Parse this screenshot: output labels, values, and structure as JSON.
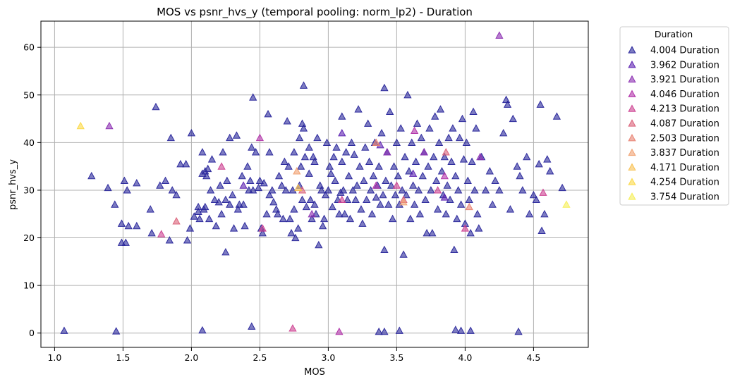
{
  "chart_data": {
    "type": "scatter",
    "title": "MOS vs psnr_hvs_y (temporal pooling: norm_lp2) - Duration",
    "xlabel": "MOS",
    "ylabel": "psnr_hvs_y",
    "xlim": [
      0.9,
      4.9
    ],
    "ylim": [
      -3,
      65.5
    ],
    "xticks": [
      1.0,
      1.5,
      2.0,
      2.5,
      3.0,
      3.5,
      4.0,
      4.5
    ],
    "xtick_labels": [
      "1.0",
      "1.5",
      "2.0",
      "2.5",
      "3.0",
      "3.5",
      "4.0",
      "4.5"
    ],
    "yticks": [
      0,
      10,
      20,
      30,
      40,
      50,
      60
    ],
    "ytick_labels": [
      "0",
      "10",
      "20",
      "30",
      "40",
      "50",
      "60"
    ],
    "grid": true,
    "marker": "triangle",
    "legend": {
      "title": "Duration",
      "placement": "outside-upper-right"
    },
    "series": [
      {
        "name": "4.004 Duration",
        "color": "#27249a",
        "points": [
          [
            1.07,
            0.5
          ],
          [
            1.45,
            0.4
          ],
          [
            2.08,
            0.6
          ],
          [
            2.44,
            1.4
          ],
          [
            3.37,
            0.3
          ],
          [
            3.41,
            0.3
          ],
          [
            3.52,
            0.5
          ],
          [
            3.93,
            0.7
          ],
          [
            3.97,
            0.5
          ],
          [
            4.04,
            0.5
          ],
          [
            4.39,
            0.3
          ],
          [
            1.27,
            33
          ],
          [
            1.39,
            30.5
          ],
          [
            1.44,
            27
          ],
          [
            1.49,
            23
          ],
          [
            1.49,
            19
          ],
          [
            1.51,
            32
          ],
          [
            1.52,
            19
          ],
          [
            1.53,
            30
          ],
          [
            1.54,
            22.5
          ],
          [
            1.6,
            31.5
          ],
          [
            1.6,
            22.5
          ],
          [
            1.7,
            26
          ],
          [
            1.71,
            21
          ],
          [
            1.74,
            47.5
          ],
          [
            1.77,
            31
          ],
          [
            1.81,
            32
          ],
          [
            1.84,
            19.5
          ],
          [
            1.85,
            41
          ],
          [
            1.86,
            30
          ],
          [
            1.89,
            29
          ],
          [
            1.92,
            35.5
          ],
          [
            1.96,
            35.5
          ],
          [
            1.97,
            19.5
          ],
          [
            1.99,
            22
          ],
          [
            2.0,
            42
          ],
          [
            2.02,
            24.5
          ],
          [
            2.05,
            26.5
          ],
          [
            2.05,
            25.5
          ],
          [
            2.06,
            24
          ],
          [
            2.08,
            33.5
          ],
          [
            2.08,
            38
          ],
          [
            2.09,
            26
          ],
          [
            2.1,
            26.5
          ],
          [
            2.1,
            34
          ],
          [
            2.11,
            33
          ],
          [
            2.12,
            34.5
          ],
          [
            2.13,
            24
          ],
          [
            2.14,
            30
          ],
          [
            2.15,
            36.5
          ],
          [
            2.17,
            28
          ],
          [
            2.18,
            22.5
          ],
          [
            2.2,
            27.5
          ],
          [
            2.21,
            31
          ],
          [
            2.22,
            25
          ],
          [
            2.23,
            38
          ],
          [
            2.25,
            28
          ],
          [
            2.25,
            17
          ],
          [
            2.26,
            32
          ],
          [
            2.28,
            27
          ],
          [
            2.28,
            41
          ],
          [
            2.3,
            29
          ],
          [
            2.31,
            22
          ],
          [
            2.33,
            41.5
          ],
          [
            2.34,
            26
          ],
          [
            2.35,
            27
          ],
          [
            2.37,
            33
          ],
          [
            2.38,
            27
          ],
          [
            2.39,
            22.5
          ],
          [
            2.41,
            35
          ],
          [
            2.42,
            30
          ],
          [
            2.43,
            32
          ],
          [
            2.44,
            39
          ],
          [
            2.45,
            49.5
          ],
          [
            2.45,
            30
          ],
          [
            2.47,
            38
          ],
          [
            2.49,
            30.5
          ],
          [
            2.5,
            32
          ],
          [
            2.51,
            22
          ],
          [
            2.52,
            21
          ],
          [
            2.53,
            31.5
          ],
          [
            2.55,
            25
          ],
          [
            2.56,
            46
          ],
          [
            2.57,
            29
          ],
          [
            2.57,
            38
          ],
          [
            2.59,
            30
          ],
          [
            2.6,
            27.5
          ],
          [
            2.62,
            26
          ],
          [
            2.63,
            25
          ],
          [
            2.64,
            33
          ],
          [
            2.66,
            31
          ],
          [
            2.67,
            24
          ],
          [
            2.68,
            36
          ],
          [
            2.69,
            30
          ],
          [
            2.7,
            44.5
          ],
          [
            2.71,
            35
          ],
          [
            2.72,
            24
          ],
          [
            2.73,
            21
          ],
          [
            2.74,
            30
          ],
          [
            2.75,
            26
          ],
          [
            2.75,
            38
          ],
          [
            2.76,
            20
          ],
          [
            2.78,
            22
          ],
          [
            2.79,
            31
          ],
          [
            2.79,
            41
          ],
          [
            2.8,
            35
          ],
          [
            2.81,
            44
          ],
          [
            2.81,
            28
          ],
          [
            2.82,
            43
          ],
          [
            2.82,
            52
          ],
          [
            2.83,
            37
          ],
          [
            2.84,
            26.5
          ],
          [
            2.86,
            33.5
          ],
          [
            2.86,
            39
          ],
          [
            2.87,
            28
          ],
          [
            2.88,
            24
          ],
          [
            2.89,
            37
          ],
          [
            2.9,
            36
          ],
          [
            2.9,
            27
          ],
          [
            2.91,
            25
          ],
          [
            2.92,
            41
          ],
          [
            2.93,
            18.5
          ],
          [
            2.94,
            31
          ],
          [
            2.95,
            30
          ],
          [
            2.96,
            22.5
          ],
          [
            2.97,
            24
          ],
          [
            2.98,
            29
          ],
          [
            2.99,
            40
          ],
          [
            3.0,
            30
          ],
          [
            3.01,
            35
          ],
          [
            3.02,
            33.5
          ],
          [
            3.03,
            26.5
          ],
          [
            3.04,
            37
          ],
          [
            3.05,
            32
          ],
          [
            3.06,
            39
          ],
          [
            3.07,
            28
          ],
          [
            3.08,
            25
          ],
          [
            3.09,
            29.5
          ],
          [
            3.1,
            45.5
          ],
          [
            3.1,
            36
          ],
          [
            3.11,
            30
          ],
          [
            3.12,
            25
          ],
          [
            3.13,
            38
          ],
          [
            3.14,
            28
          ],
          [
            3.15,
            33
          ],
          [
            3.16,
            24
          ],
          [
            3.17,
            40
          ],
          [
            3.18,
            30
          ],
          [
            3.19,
            37.5
          ],
          [
            3.2,
            28
          ],
          [
            3.21,
            31
          ],
          [
            3.22,
            47
          ],
          [
            3.23,
            35
          ],
          [
            3.24,
            26
          ],
          [
            3.25,
            23
          ],
          [
            3.26,
            32
          ],
          [
            3.27,
            39
          ],
          [
            3.28,
            28
          ],
          [
            3.29,
            44
          ],
          [
            3.3,
            36
          ],
          [
            3.31,
            30
          ],
          [
            3.32,
            25
          ],
          [
            3.33,
            33
          ],
          [
            3.34,
            40
          ],
          [
            3.35,
            28.5
          ],
          [
            3.36,
            31
          ],
          [
            3.37,
            35
          ],
          [
            3.38,
            27
          ],
          [
            3.39,
            42
          ],
          [
            3.4,
            29
          ],
          [
            3.41,
            51.5
          ],
          [
            3.41,
            17.5
          ],
          [
            3.42,
            32
          ],
          [
            3.43,
            38
          ],
          [
            3.44,
            27
          ],
          [
            3.45,
            46.5
          ],
          [
            3.46,
            31
          ],
          [
            3.47,
            24
          ],
          [
            3.48,
            35
          ],
          [
            3.49,
            29
          ],
          [
            3.5,
            40
          ],
          [
            3.51,
            33
          ],
          [
            3.52,
            27
          ],
          [
            3.53,
            43
          ],
          [
            3.54,
            30
          ],
          [
            3.55,
            16.5
          ],
          [
            3.56,
            37
          ],
          [
            3.57,
            29
          ],
          [
            3.58,
            50
          ],
          [
            3.59,
            34
          ],
          [
            3.6,
            24
          ],
          [
            3.61,
            40
          ],
          [
            3.62,
            31
          ],
          [
            3.63,
            27
          ],
          [
            3.64,
            36
          ],
          [
            3.65,
            44
          ],
          [
            3.66,
            30
          ],
          [
            3.67,
            25
          ],
          [
            3.68,
            41
          ],
          [
            3.69,
            33
          ],
          [
            3.7,
            38
          ],
          [
            3.71,
            28
          ],
          [
            3.72,
            21
          ],
          [
            3.73,
            35
          ],
          [
            3.74,
            43
          ],
          [
            3.75,
            30
          ],
          [
            3.76,
            21
          ],
          [
            3.77,
            37
          ],
          [
            3.78,
            45.5
          ],
          [
            3.79,
            32
          ],
          [
            3.8,
            26
          ],
          [
            3.81,
            40
          ],
          [
            3.82,
            47
          ],
          [
            3.83,
            34
          ],
          [
            3.84,
            29
          ],
          [
            3.85,
            37
          ],
          [
            3.86,
            25
          ],
          [
            3.87,
            31
          ],
          [
            3.88,
            41
          ],
          [
            3.89,
            28
          ],
          [
            3.9,
            36
          ],
          [
            3.91,
            43
          ],
          [
            3.92,
            17.5
          ],
          [
            3.93,
            33
          ],
          [
            3.94,
            24
          ],
          [
            3.95,
            30
          ],
          [
            3.96,
            41
          ],
          [
            3.97,
            27
          ],
          [
            3.98,
            45
          ],
          [
            3.99,
            36.5
          ],
          [
            4.0,
            23
          ],
          [
            4.01,
            40
          ],
          [
            4.02,
            32
          ],
          [
            4.03,
            28
          ],
          [
            4.04,
            21
          ],
          [
            4.05,
            36
          ],
          [
            4.06,
            46.5
          ],
          [
            4.07,
            30
          ],
          [
            4.08,
            43
          ],
          [
            4.09,
            25
          ],
          [
            4.1,
            22
          ],
          [
            4.12,
            37
          ],
          [
            4.15,
            30
          ],
          [
            4.18,
            34
          ],
          [
            4.2,
            27
          ],
          [
            4.22,
            32
          ],
          [
            4.25,
            30
          ],
          [
            4.28,
            42
          ],
          [
            4.3,
            49
          ],
          [
            4.31,
            48
          ],
          [
            4.33,
            26
          ],
          [
            4.35,
            45
          ],
          [
            4.38,
            35
          ],
          [
            4.4,
            33
          ],
          [
            4.42,
            30
          ],
          [
            4.45,
            37
          ],
          [
            4.47,
            25
          ],
          [
            4.5,
            29
          ],
          [
            4.52,
            28
          ],
          [
            4.54,
            35.5
          ],
          [
            4.55,
            48
          ],
          [
            4.56,
            21.5
          ],
          [
            4.58,
            25
          ],
          [
            4.6,
            36.5
          ],
          [
            4.62,
            34
          ],
          [
            4.67,
            45.5
          ],
          [
            4.71,
            30.5
          ]
        ]
      },
      {
        "name": "3.962 Duration",
        "color": "#5b20b0",
        "points": [
          [
            2.38,
            31
          ],
          [
            3.1,
            42
          ],
          [
            3.38,
            39.5
          ],
          [
            3.62,
            33.5
          ],
          [
            3.85,
            28.5
          ]
        ]
      },
      {
        "name": "3.921 Duration",
        "color": "#8a2cb0",
        "points": [
          [
            1.4,
            43.5
          ],
          [
            2.88,
            25
          ],
          [
            3.43,
            38
          ],
          [
            3.7,
            38
          ],
          [
            4.25,
            62.5
          ],
          [
            4.11,
            37
          ]
        ]
      },
      {
        "name": "4.046 Duration",
        "color": "#b030a8",
        "points": [
          [
            2.5,
            41
          ],
          [
            3.08,
            0.3
          ],
          [
            3.35,
            31
          ],
          [
            3.63,
            42.5
          ],
          [
            3.85,
            33
          ]
        ]
      },
      {
        "name": "4.213 Duration",
        "color": "#cc4090",
        "points": [
          [
            1.78,
            20.8
          ],
          [
            2.22,
            35
          ],
          [
            2.52,
            22
          ],
          [
            2.74,
            1.0
          ],
          [
            3.1,
            28
          ],
          [
            3.5,
            31
          ],
          [
            3.8,
            30
          ],
          [
            4.0,
            22
          ],
          [
            4.57,
            29.5
          ]
        ]
      },
      {
        "name": "4.087 Duration",
        "color": "#da6078",
        "points": [
          [
            1.89,
            23.5
          ],
          [
            2.81,
            30
          ],
          [
            3.55,
            28
          ],
          [
            3.86,
            38
          ]
        ]
      },
      {
        "name": "2.503 Duration",
        "color": "#e88070",
        "points": [
          [
            4.03,
            26.5
          ],
          [
            3.35,
            40
          ]
        ]
      },
      {
        "name": "3.837 Duration",
        "color": "#f0a070",
        "points": [
          [
            2.77,
            34
          ],
          [
            3.55,
            27.5
          ]
        ]
      },
      {
        "name": "4.171 Duration",
        "color": "#f8c050",
        "points": [
          [
            2.78,
            30.5
          ]
        ]
      },
      {
        "name": "4.254 Duration",
        "color": "#fbd845",
        "points": [
          [
            1.19,
            43.5
          ]
        ]
      },
      {
        "name": "3.754 Duration",
        "color": "#f5ee55",
        "points": [
          [
            4.74,
            27
          ]
        ]
      }
    ]
  }
}
